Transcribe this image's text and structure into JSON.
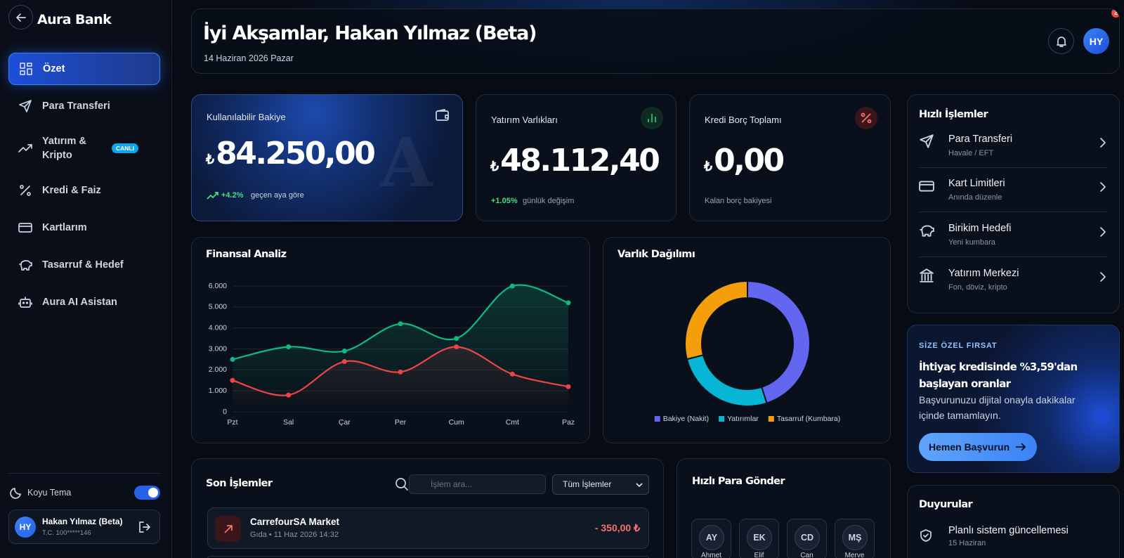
{
  "sidebar": {
    "brand": "Aura Bank",
    "nav": [
      {
        "label": "Özet"
      },
      {
        "label": "Para Transferi"
      },
      {
        "label": "Yatırım & Kripto",
        "badge": "CANLI"
      },
      {
        "label": "Kredi & Faiz"
      },
      {
        "label": "Kartlarım"
      },
      {
        "label": "Tasarruf & Hedef"
      },
      {
        "label": "Aura AI Asistan"
      }
    ],
    "theme_label": "Koyu Tema",
    "user": {
      "initials": "HY",
      "name": "Hakan Yılmaz (Beta)",
      "id": "T.C. 100*****146"
    }
  },
  "header": {
    "greeting": "İyi Akşamlar, Hakan Yılmaz (Beta)",
    "date": "14 Haziran 2026 Pazar",
    "avatar": "HY",
    "notification_count": "2"
  },
  "cards": [
    {
      "label": "Kullanılabilir Bakiye",
      "currency": "₺",
      "amount": "84.250,00",
      "watermark": "A",
      "change": "+4.2%",
      "note": "geçen aya göre"
    },
    {
      "label": "Yatırım Varlıkları",
      "currency": "₺",
      "amount": "48.112,40",
      "change": "+1.05%",
      "note": "günlük değişim"
    },
    {
      "label": "Kredi Borç Toplamı",
      "currency": "₺",
      "amount": "0,00",
      "note": "Kalan borç bakiyesi"
    }
  ],
  "chart_data": [
    {
      "type": "line",
      "title": "Finansal Analiz",
      "categories": [
        "Pzt",
        "Sal",
        "Çar",
        "Per",
        "Cum",
        "Cmt",
        "Paz"
      ],
      "series": [
        {
          "color": "#10b981",
          "values": [
            2500,
            3100,
            2900,
            4200,
            3500,
            6000,
            5200
          ]
        },
        {
          "color": "#ef4444",
          "values": [
            1500,
            800,
            2400,
            1900,
            3100,
            1800,
            1200
          ]
        }
      ],
      "ylim": [
        0,
        6000
      ],
      "yticks": [
        0,
        {
          "value": 1000,
          "label": "1.000"
        },
        {
          "value": 2000,
          "label": "2.000"
        },
        {
          "value": 3000,
          "label": "3.000"
        },
        {
          "value": 4000,
          "label": "4.000"
        },
        {
          "value": 5000,
          "label": "5.000"
        },
        {
          "value": 6000,
          "label": "6.000"
        }
      ],
      "grid": true
    },
    {
      "type": "pie",
      "title": "Varlık Dağılımı",
      "donut": true,
      "categories": [
        "Bakiye (Nakit)",
        "Yatırımlar",
        "Tasarruf (Kumbara)"
      ],
      "values": [
        45,
        26,
        29
      ],
      "colors": [
        "#6366f1",
        "#06b6d4",
        "#f59e0b"
      ],
      "legend": "bottom"
    }
  ],
  "quick_actions": {
    "title": "Hızlı İşlemler",
    "items": [
      {
        "title": "Para Transferi",
        "subtitle": "Havale / EFT"
      },
      {
        "title": "Kart Limitleri",
        "subtitle": "Anında düzenle"
      },
      {
        "title": "Birikim Hedefi",
        "subtitle": "Yeni kumbara"
      },
      {
        "title": "Yatırım Merkezi",
        "subtitle": "Fon, döviz, kripto"
      }
    ]
  },
  "promo": {
    "eyebrow": "SİZE ÖZEL FIRSAT",
    "title": "İhtiyaç kredisinde %3,59'dan başlayan oranlar",
    "text": "Başvurunuzu dijital onayla dakikalar içinde tamamlayın.",
    "button": "Hemen Başvurun"
  },
  "announcements": {
    "title": "Duyurular",
    "items": [
      {
        "title": "Planlı sistem güncellemesi",
        "date": "15 Haziran"
      }
    ]
  },
  "transactions": {
    "title": "Son İşlemler",
    "search_placeholder": "İşlem ara...",
    "filter": "Tüm İşlemler",
    "items": [
      {
        "name": "CarrefourSA Market",
        "meta": "Gıda • 11 Haz 2026 14:32",
        "amount": "- 350,00 ₺"
      }
    ]
  },
  "quick_send": {
    "title": "Hızlı Para Gönder",
    "contacts": [
      {
        "initials": "AY",
        "name": "Ahmet"
      },
      {
        "initials": "EK",
        "name": "Elif"
      },
      {
        "initials": "CD",
        "name": "Can"
      },
      {
        "initials": "MŞ",
        "name": "Merve"
      }
    ]
  }
}
